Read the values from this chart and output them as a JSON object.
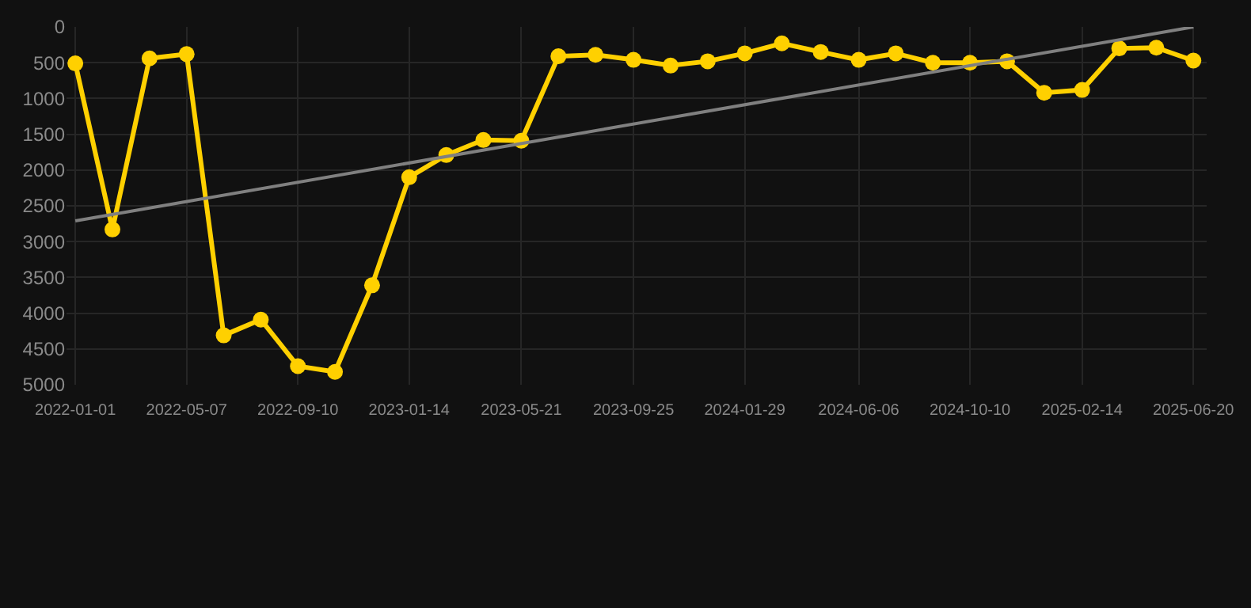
{
  "chart_data": {
    "type": "line",
    "x": [
      "2022-01-01",
      "2022-02-12",
      "2022-03-26",
      "2022-05-07",
      "2022-06-18",
      "2022-07-30",
      "2022-09-10",
      "2022-10-22",
      "2022-12-03",
      "2023-01-14",
      "2023-02-25",
      "2023-04-08",
      "2023-05-21",
      "2023-07-02",
      "2023-08-13",
      "2023-09-25",
      "2023-11-06",
      "2023-12-18",
      "2024-01-29",
      "2024-03-11",
      "2024-04-24",
      "2024-06-06",
      "2024-07-18",
      "2024-08-29",
      "2024-10-10",
      "2024-11-21",
      "2025-01-02",
      "2025-02-14",
      "2025-03-28",
      "2025-05-09",
      "2025-06-20"
    ],
    "series": [
      {
        "color": "#ffd000",
        "marker": "circle",
        "values": [
          510,
          2830,
          440,
          380,
          4310,
          4090,
          4740,
          4820,
          3610,
          2100,
          1790,
          1580,
          1590,
          410,
          390,
          460,
          540,
          480,
          370,
          230,
          350,
          460,
          370,
          500,
          500,
          480,
          920,
          880,
          300,
          290,
          470
        ]
      },
      {
        "color": "#808080",
        "marker": "none",
        "x": [
          "2022-01-01",
          "2025-06-20"
        ],
        "values": [
          2710,
          0
        ]
      }
    ],
    "xlim": [
      "2021-12-22",
      "2025-07-05"
    ],
    "xticks": [
      "2022-01-01",
      "2022-05-07",
      "2022-09-10",
      "2023-01-14",
      "2023-05-21",
      "2023-09-25",
      "2024-01-29",
      "2024-06-06",
      "2024-10-10",
      "2025-02-14",
      "2025-06-20"
    ],
    "ylim": [
      5000,
      0
    ],
    "yticks": [
      0,
      500,
      1000,
      1500,
      2000,
      2500,
      3000,
      3500,
      4000,
      4500,
      5000
    ],
    "grid": true,
    "line_style": "solid"
  }
}
